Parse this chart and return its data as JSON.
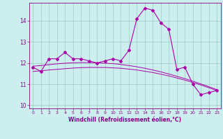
{
  "x": [
    0,
    1,
    2,
    3,
    4,
    5,
    6,
    7,
    8,
    9,
    10,
    11,
    12,
    13,
    14,
    15,
    16,
    17,
    18,
    19,
    20,
    21,
    22,
    23
  ],
  "windchill": [
    11.8,
    11.6,
    12.2,
    12.2,
    12.5,
    12.2,
    12.2,
    12.1,
    12.0,
    12.1,
    12.2,
    12.1,
    12.6,
    14.1,
    14.6,
    14.5,
    13.9,
    13.6,
    11.7,
    11.8,
    11.0,
    10.5,
    10.6,
    10.7
  ],
  "trend1": [
    11.85,
    11.88,
    11.92,
    11.96,
    11.99,
    12.01,
    12.02,
    12.02,
    12.01,
    11.99,
    11.97,
    11.93,
    11.88,
    11.82,
    11.75,
    11.67,
    11.58,
    11.48,
    11.37,
    11.26,
    11.14,
    11.01,
    10.88,
    10.74
  ],
  "trend2": [
    11.6,
    11.63,
    11.67,
    11.7,
    11.73,
    11.76,
    11.78,
    11.79,
    11.79,
    11.79,
    11.77,
    11.75,
    11.71,
    11.67,
    11.61,
    11.55,
    11.47,
    11.39,
    11.29,
    11.19,
    11.08,
    10.96,
    10.83,
    10.7
  ],
  "line_color": "#aa00aa",
  "bg_color": "#cceeee",
  "grid_color": "#99ccbb",
  "xlabel": "Windchill (Refroidissement éolien,°C)",
  "xlim": [
    -0.5,
    23.5
  ],
  "ylim": [
    9.85,
    14.85
  ],
  "yticks": [
    10,
    11,
    12,
    13,
    14
  ],
  "xticks": [
    0,
    1,
    2,
    3,
    4,
    5,
    6,
    7,
    8,
    9,
    10,
    11,
    12,
    13,
    14,
    15,
    16,
    17,
    18,
    19,
    20,
    21,
    22,
    23
  ]
}
